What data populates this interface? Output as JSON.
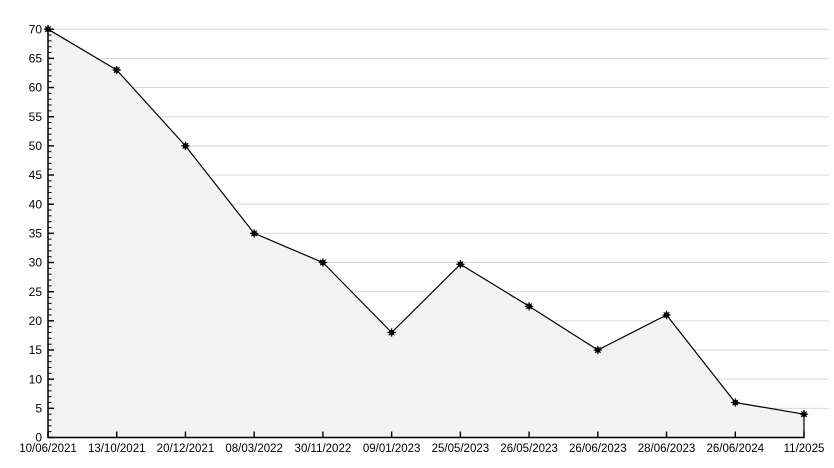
{
  "chart_data": {
    "type": "area",
    "title": "",
    "xlabel": "",
    "ylabel": "",
    "categories": [
      "10/06/2021",
      "13/10/2021",
      "20/12/2021",
      "08/03/2022",
      "30/11/2022",
      "09/01/2023",
      "25/05/2023",
      "26/05/2023",
      "26/06/2023",
      "28/06/2023",
      "26/06/2024",
      "11/2025"
    ],
    "values": [
      70,
      63,
      50,
      35,
      30,
      18,
      29.7,
      22.5,
      15,
      21,
      6,
      4
    ],
    "ylim": [
      0,
      70
    ],
    "y_major_tick_step": 5,
    "y_minor_tick_step": 1,
    "y_tick_labels": [
      "0",
      "5",
      "10",
      "15",
      "20",
      "25",
      "30",
      "35",
      "40",
      "45",
      "50",
      "55",
      "60",
      "65",
      "70"
    ],
    "grid": "horizontal-major",
    "legend_position": "none",
    "marker_style": "asterisk-dot",
    "colors": {
      "background": "#ffffff",
      "area_fill": "#f2f2f2",
      "line": "#000000",
      "marker": "#000000",
      "gridline": "#d8d8d8",
      "axis": "#000000",
      "text": "#000000"
    }
  }
}
